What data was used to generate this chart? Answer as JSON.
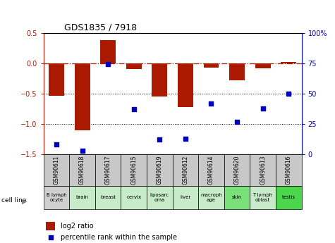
{
  "title": "GDS1835 / 7918",
  "gsm_labels": [
    "GSM90611",
    "GSM90618",
    "GSM90617",
    "GSM90615",
    "GSM90619",
    "GSM90612",
    "GSM90614",
    "GSM90620",
    "GSM90613",
    "GSM90616"
  ],
  "cell_line_labels": [
    "B lymph\nocyte",
    "brain",
    "breast",
    "cervix",
    "liposarc\noma",
    "liver",
    "macroph\nage",
    "skin",
    "T lymph\noblast",
    "testis"
  ],
  "cell_line_colors": [
    "#d0d0d0",
    "#c8ebc9",
    "#c8ebc9",
    "#c8ebc9",
    "#c8ebc9",
    "#c8ebc9",
    "#c8ebc9",
    "#7ae07a",
    "#c8ebc9",
    "#4cd64c"
  ],
  "gsm_box_color": "#c8c8c8",
  "log2_ratio": [
    -0.54,
    -1.1,
    0.38,
    -0.1,
    -0.55,
    -0.72,
    -0.07,
    -0.28,
    -0.09,
    0.02
  ],
  "percentile_rank": [
    8,
    3,
    74,
    37,
    12,
    13,
    42,
    27,
    38,
    50
  ],
  "ylim_left": [
    -1.5,
    0.5
  ],
  "ylim_right": [
    0,
    100
  ],
  "bar_color": "#aa1a00",
  "dot_color": "#0000bb",
  "ref_line_color": "#aa1a00",
  "grid_color": "#000000",
  "bg_color": "#ffffff",
  "bar_width": 0.6,
  "legend_red_label": "log2 ratio",
  "legend_blue_label": "percentile rank within the sample"
}
